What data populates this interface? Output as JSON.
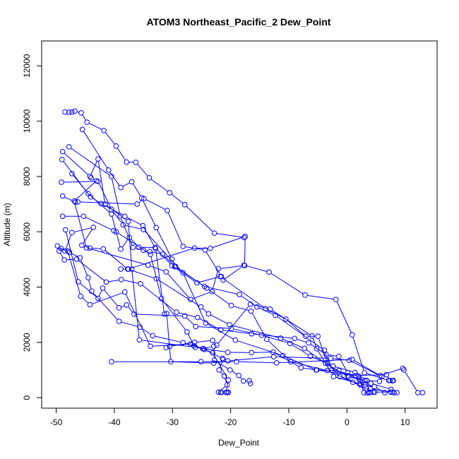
{
  "chart_data": {
    "type": "scatter",
    "title": "ATOM3 Northeast_Pacific_2 Dew_Point",
    "xlabel": "Dew_Point",
    "ylabel": "Altitude (m)",
    "xlim": [
      -52.5,
      15.5
    ],
    "ylim": [
      -380,
      12900
    ],
    "xticks": [
      -50,
      -40,
      -30,
      -20,
      -10,
      0,
      10
    ],
    "yticks": [
      0,
      2000,
      4000,
      6000,
      8000,
      10000,
      12000
    ],
    "grid": false,
    "line_color": "#0000ff",
    "marker": "open-circle",
    "series": [
      {
        "points": [
          [
            -48.5,
            10330
          ],
          [
            -47.8,
            10320
          ],
          [
            -47.3,
            10330
          ],
          [
            -46.8,
            10360
          ],
          [
            -45.7,
            10300
          ],
          [
            -44.7,
            9960
          ],
          [
            -41.8,
            9660
          ],
          [
            -39.7,
            9100
          ],
          [
            -37.9,
            8520
          ],
          [
            -36.3,
            8510
          ],
          [
            -34.0,
            7950
          ],
          [
            -30.5,
            7410
          ],
          [
            -27.9,
            6980
          ],
          [
            -22.8,
            5950
          ],
          [
            -17.7,
            5790
          ]
        ]
      },
      {
        "points": [
          [
            -45.5,
            9700
          ],
          [
            -41.0,
            8230
          ],
          [
            -38.9,
            7600
          ],
          [
            -37.0,
            7810
          ],
          [
            -35.3,
            7220
          ],
          [
            -32.8,
            6150
          ],
          [
            -30.1,
            5010
          ],
          [
            -29.5,
            4750
          ],
          [
            -24.1,
            3960
          ],
          [
            -19.9,
            3330
          ],
          [
            -16.5,
            3130
          ],
          [
            -13.8,
            2110
          ],
          [
            -9.7,
            1300
          ],
          [
            -3.4,
            980
          ],
          [
            2.3,
            460
          ],
          [
            3.5,
            170
          ]
        ]
      },
      {
        "points": [
          [
            -47.8,
            9070
          ],
          [
            -40.5,
            8000
          ],
          [
            -39.0,
            6570
          ],
          [
            -36.8,
            5430
          ],
          [
            -35.0,
            5330
          ],
          [
            -33.9,
            5280
          ],
          [
            -31.7,
            5190
          ],
          [
            -29.6,
            4740
          ],
          [
            -24.5,
            4020
          ],
          [
            -18.5,
            3730
          ],
          [
            -15.5,
            3280
          ],
          [
            -12.3,
            2980
          ],
          [
            -3.9,
            1720
          ],
          [
            -2.6,
            1000
          ],
          [
            2.0,
            780
          ],
          [
            2.9,
            180
          ],
          [
            3.8,
            180
          ]
        ]
      },
      {
        "points": [
          [
            -48.9,
            8900
          ],
          [
            -44.2,
            8000
          ],
          [
            -42.8,
            8630
          ],
          [
            -41.6,
            7000
          ],
          [
            -37.6,
            6370
          ],
          [
            -37.0,
            4650
          ],
          [
            -35.7,
            2090
          ],
          [
            -26.1,
            1820
          ],
          [
            -20.5,
            1640
          ],
          [
            -16.4,
            1630
          ],
          [
            -12.7,
            1650
          ],
          [
            -7.9,
            1080
          ],
          [
            -5.2,
            1000
          ],
          [
            -1.4,
            980
          ],
          [
            0.1,
            790
          ],
          [
            3.1,
            620
          ],
          [
            4.0,
            190
          ],
          [
            4.8,
            200
          ]
        ]
      },
      {
        "points": [
          [
            -47.3,
            8100
          ],
          [
            -44.5,
            7380
          ],
          [
            -40.5,
            6640
          ],
          [
            -38.9,
            5370
          ],
          [
            -37.4,
            5800
          ],
          [
            -35.8,
            5440
          ],
          [
            -33.0,
            5430
          ],
          [
            -30.1,
            4770
          ],
          [
            -25.8,
            4150
          ],
          [
            -21.8,
            4380
          ],
          [
            -14.0,
            3220
          ],
          [
            -10.5,
            2840
          ],
          [
            -7.1,
            2220
          ],
          [
            -5.0,
            2220
          ],
          [
            -3.3,
            1230
          ],
          [
            -1.2,
            760
          ],
          [
            1.0,
            560
          ],
          [
            4.5,
            200
          ],
          [
            7.5,
            200
          ],
          [
            8.1,
            180
          ]
        ]
      },
      {
        "points": [
          [
            -49.0,
            8610
          ],
          [
            -44.1,
            7260
          ],
          [
            -42.3,
            7020
          ],
          [
            -38.2,
            6560
          ],
          [
            -35.1,
            6220
          ],
          [
            -32.9,
            5390
          ],
          [
            -31.4,
            3020
          ],
          [
            -31.0,
            3040
          ],
          [
            -30.3,
            1300
          ],
          [
            -22.9,
            1250
          ],
          [
            -20.5,
            1330
          ],
          [
            -12.6,
            1480
          ],
          [
            -2.8,
            1420
          ],
          [
            0.4,
            1350
          ],
          [
            6.0,
            760
          ]
        ]
      },
      {
        "points": [
          [
            -49.1,
            7790
          ],
          [
            -42.8,
            7820
          ],
          [
            -40.5,
            6810
          ],
          [
            -38.5,
            6250
          ],
          [
            -35.0,
            6080
          ],
          [
            -28.2,
            4520
          ],
          [
            -24.3,
            2700
          ],
          [
            -19.2,
            2080
          ],
          [
            -11.0,
            1520
          ],
          [
            -5.3,
            1000
          ],
          [
            1.5,
            800
          ],
          [
            6.8,
            830
          ],
          [
            7.4,
            620
          ]
        ]
      },
      {
        "points": [
          [
            -48.9,
            7290
          ],
          [
            -46.7,
            7070
          ],
          [
            -46.3,
            7080
          ],
          [
            -36.1,
            7000
          ],
          [
            -34.9,
            7200
          ],
          [
            -30.9,
            6770
          ],
          [
            -28.2,
            5470
          ],
          [
            -24.4,
            5340
          ],
          [
            -21.6,
            4380
          ],
          [
            -21.3,
            4250
          ],
          [
            -17.7,
            4790
          ],
          [
            -13.4,
            4540
          ],
          [
            -7.2,
            3710
          ],
          [
            -1.9,
            3550
          ],
          [
            0.9,
            2270
          ],
          [
            3.0,
            900
          ],
          [
            7.2,
            620
          ],
          [
            7.8,
            610
          ],
          [
            8.0,
            620
          ]
        ]
      },
      {
        "points": [
          [
            -48.9,
            6560
          ],
          [
            -45.3,
            6560
          ],
          [
            -40.1,
            6040
          ],
          [
            -39.7,
            6000
          ],
          [
            -33.8,
            5180
          ],
          [
            -31.9,
            3580
          ],
          [
            -27.5,
            2380
          ],
          [
            -26.3,
            1880
          ],
          [
            -24.7,
            1770
          ],
          [
            -22.9,
            1860
          ],
          [
            -22.8,
            1350
          ],
          [
            -20.1,
            1000
          ],
          [
            -18.6,
            800
          ],
          [
            -17.8,
            600
          ],
          [
            -16.8,
            610
          ],
          [
            -16.6,
            510
          ]
        ]
      },
      {
        "points": [
          [
            -49.8,
            5490
          ],
          [
            -48.5,
            5300
          ],
          [
            -47.3,
            5970
          ],
          [
            -43.6,
            6160
          ],
          [
            -45.6,
            5510
          ],
          [
            -44.2,
            5410
          ],
          [
            -41.9,
            5380
          ],
          [
            -37.7,
            4650
          ],
          [
            -32.8,
            4300
          ],
          [
            -25.1,
            3280
          ],
          [
            -23.8,
            3030
          ],
          [
            -20.2,
            2640
          ],
          [
            -11.4,
            2150
          ],
          [
            -7.3,
            1780
          ],
          [
            -3.7,
            1240
          ],
          [
            0.3,
            750
          ],
          [
            2.1,
            670
          ],
          [
            4.1,
            520
          ],
          [
            7.6,
            300
          ]
        ]
      },
      {
        "points": [
          [
            -49.5,
            5300
          ],
          [
            -48.6,
            4980
          ],
          [
            -46.5,
            5010
          ],
          [
            -41.4,
            4180
          ],
          [
            -38.8,
            4270
          ],
          [
            -35.5,
            4120
          ],
          [
            -29.3,
            3090
          ],
          [
            -25.7,
            2900
          ],
          [
            -21.7,
            2450
          ],
          [
            -16.4,
            2310
          ],
          [
            -9.0,
            2140
          ],
          [
            -6.6,
            1980
          ],
          [
            -3.6,
            1560
          ],
          [
            -1.4,
            1490
          ],
          [
            0.1,
            900
          ],
          [
            2.3,
            600
          ],
          [
            3.2,
            470
          ],
          [
            4.0,
            320
          ],
          [
            7.8,
            200
          ],
          [
            8.6,
            180
          ]
        ]
      },
      {
        "points": [
          [
            -48.4,
            6070
          ],
          [
            -46.2,
            4190
          ],
          [
            -42.8,
            3590
          ],
          [
            -42.0,
            3960
          ],
          [
            -39.2,
            3250
          ],
          [
            -37.9,
            3350
          ],
          [
            -36.6,
            3020
          ],
          [
            -27.9,
            2950
          ],
          [
            -26.0,
            2570
          ],
          [
            -19.9,
            2500
          ],
          [
            -14.7,
            2260
          ],
          [
            -9.8,
            1960
          ],
          [
            -6.3,
            1500
          ],
          [
            -2.4,
            1140
          ],
          [
            1.4,
            910
          ],
          [
            3.4,
            620
          ],
          [
            5.6,
            590
          ]
        ]
      },
      {
        "points": [
          [
            -49.2,
            5400
          ],
          [
            -47.7,
            5250
          ],
          [
            -45.9,
            5060
          ],
          [
            -44.5,
            4340
          ],
          [
            -43.9,
            3850
          ],
          [
            -39.2,
            2760
          ],
          [
            -35.6,
            2550
          ],
          [
            -33.4,
            2240
          ],
          [
            -28.2,
            1990
          ],
          [
            -24.8,
            1770
          ],
          [
            -21.4,
            1420
          ],
          [
            -21.3,
            1380
          ],
          [
            -22.0,
            1000
          ],
          [
            -21.1,
            780
          ],
          [
            -20.6,
            460
          ],
          [
            -22.1,
            200
          ],
          [
            -21.6,
            190
          ],
          [
            -21.7,
            190
          ]
        ]
      },
      {
        "points": [
          [
            -48.0,
            5300
          ],
          [
            -45.8,
            3670
          ],
          [
            -44.2,
            3360
          ],
          [
            -38.2,
            3820
          ],
          [
            -33.8,
            1860
          ],
          [
            -26.9,
            1940
          ],
          [
            -24.5,
            1740
          ],
          [
            -23.1,
            1620
          ],
          [
            -20.4,
            640
          ],
          [
            -20.8,
            190
          ],
          [
            -20.4,
            190
          ],
          [
            -20.6,
            190
          ]
        ]
      },
      {
        "points": [
          [
            -44.0,
            7950
          ],
          [
            -43.1,
            7840
          ],
          [
            -46.9,
            7110
          ],
          [
            -44.8,
            5420
          ],
          [
            -34.2,
            4790
          ],
          [
            -31.1,
            4550
          ],
          [
            -26.9,
            3550
          ],
          [
            -23.2,
            3840
          ],
          [
            -22.1,
            4660
          ],
          [
            -17.6,
            4780
          ],
          [
            -17.5,
            5830
          ],
          [
            -23.5,
            5400
          ],
          [
            -26.2,
            5410
          ],
          [
            -37.6,
            4650
          ],
          [
            -38.9,
            4650
          ]
        ]
      },
      {
        "points": [
          [
            -40.5,
            1300
          ],
          [
            -25.1,
            1300
          ],
          [
            -19.0,
            1300
          ],
          [
            -12.1,
            1260
          ],
          [
            0.9,
            1380
          ],
          [
            5.7,
            800
          ],
          [
            9.6,
            1060
          ],
          [
            9.8,
            1000
          ],
          [
            12.2,
            180
          ],
          [
            13.0,
            180
          ]
        ]
      },
      {
        "points": [
          [
            -31.1,
            1810
          ],
          [
            -30.5,
            1850
          ],
          [
            -26.2,
            2000
          ],
          [
            -23.1,
            2070
          ],
          [
            -22.4,
            1900
          ],
          [
            -16.6,
            3380
          ],
          [
            -13.2,
            3200
          ],
          [
            -6.0,
            2230
          ],
          [
            -5.2,
            1770
          ],
          [
            -2.3,
            760
          ],
          [
            2.2,
            500
          ],
          [
            4.7,
            400
          ],
          [
            6.5,
            180
          ]
        ]
      }
    ]
  }
}
